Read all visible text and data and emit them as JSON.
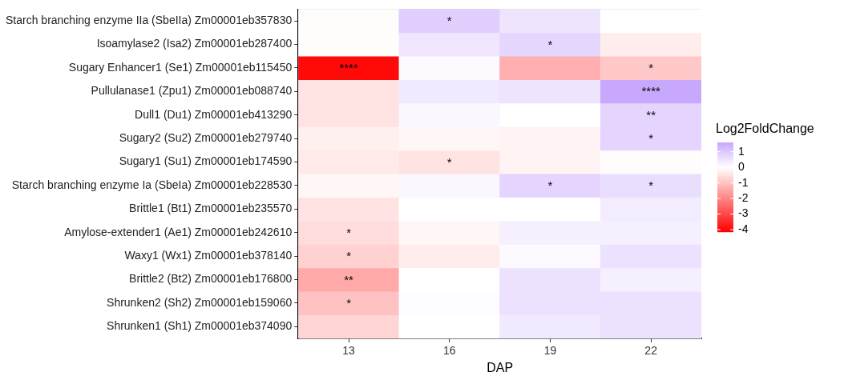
{
  "chart_data": {
    "type": "heatmap",
    "xlabel": "DAP",
    "clabel": "Log2FoldChange",
    "categories": [
      "13",
      "16",
      "19",
      "22"
    ],
    "y_categories": [
      "Starch branching enzyme IIa (SbeIIa) Zm00001eb357830",
      "Isoamylase2 (Isa2) Zm00001eb287400",
      "Sugary Enhancer1 (Se1) Zm00001eb115450",
      "Pullulanase1 (Zpu1) Zm00001eb088740",
      "Dull1 (Du1) Zm00001eb413290",
      "Sugary2 (Su2) Zm00001eb279740",
      "Sugary1 (Su1) Zm00001eb174590",
      "Starch branching enzyme Ia (SbeIa) Zm00001eb228530",
      "Brittle1 (Bt1) Zm00001eb235570",
      "Amylose-extender1 (Ae1) Zm00001eb242610",
      "Waxy1 (Wx1) Zm00001eb378140",
      "Brittle2 (Bt2) Zm00001eb176800",
      "Shrunken2 (Sh2) Zm00001eb159060",
      "Shrunken1 (Sh1) Zm00001eb374090"
    ],
    "cells": [
      [
        -0.05,
        0.9,
        0.5,
        0.0
      ],
      [
        -0.05,
        0.45,
        0.75,
        -0.3
      ],
      [
        -4.0,
        0.1,
        -1.3,
        -0.9
      ],
      [
        -0.45,
        0.4,
        0.5,
        1.6
      ],
      [
        -0.45,
        0.15,
        0.0,
        0.8
      ],
      [
        -0.25,
        -0.15,
        -0.2,
        0.8
      ],
      [
        -0.35,
        -0.45,
        -0.2,
        -0.05
      ],
      [
        -0.15,
        0.15,
        0.8,
        0.6
      ],
      [
        -0.45,
        0.0,
        0.0,
        0.35
      ],
      [
        -0.55,
        -0.15,
        0.3,
        0.3
      ],
      [
        -0.75,
        -0.3,
        0.1,
        0.55
      ],
      [
        -1.4,
        0.0,
        0.55,
        0.3
      ],
      [
        -1.0,
        0.05,
        0.55,
        0.55
      ],
      [
        -0.7,
        0.0,
        0.4,
        0.55
      ]
    ],
    "cell_labels": [
      [
        null,
        "*",
        null,
        null
      ],
      [
        null,
        null,
        "*",
        null
      ],
      [
        "****",
        null,
        null,
        "*"
      ],
      [
        null,
        null,
        null,
        "****"
      ],
      [
        null,
        null,
        null,
        "**"
      ],
      [
        null,
        null,
        null,
        "*"
      ],
      [
        null,
        "*",
        null,
        null
      ],
      [
        null,
        null,
        "*",
        "*"
      ],
      [
        null,
        null,
        null,
        null
      ],
      [
        "*",
        null,
        null,
        null
      ],
      [
        "*",
        null,
        null,
        null
      ],
      [
        "**",
        null,
        null,
        null
      ],
      [
        "*",
        null,
        null,
        null
      ],
      [
        null,
        null,
        null,
        null
      ]
    ],
    "clim": [
      -4.15,
      1.6
    ],
    "cticks": [
      1,
      0,
      -1,
      -2,
      -3,
      -4
    ]
  }
}
